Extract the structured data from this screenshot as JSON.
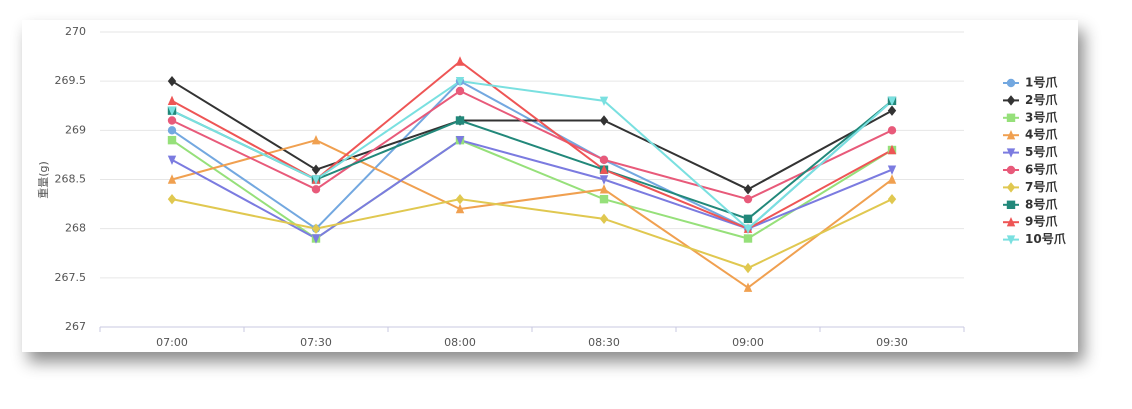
{
  "chart_data": {
    "type": "line",
    "y_label": "重量(g)",
    "categories": [
      "07:00",
      "07:30",
      "08:00",
      "08:30",
      "09:00",
      "09:30"
    ],
    "ylim": [
      267,
      270
    ],
    "yticks": [
      267,
      267.5,
      268,
      268.5,
      269,
      269.5,
      270
    ],
    "grid": true,
    "legend": "right",
    "series": [
      {
        "name": "1号爪",
        "color": "#73a8e0",
        "marker": "circle",
        "values": [
          269.0,
          268.0,
          269.5,
          268.7,
          268.0,
          269.3
        ]
      },
      {
        "name": "2号爪",
        "color": "#333333",
        "marker": "diamond",
        "values": [
          269.5,
          268.6,
          269.1,
          269.1,
          268.4,
          269.2
        ]
      },
      {
        "name": "3号爪",
        "color": "#96e07a",
        "marker": "square",
        "values": [
          268.9,
          267.9,
          268.9,
          268.3,
          267.9,
          268.8
        ]
      },
      {
        "name": "4号爪",
        "color": "#f0a050",
        "marker": "triangle",
        "values": [
          268.5,
          268.9,
          268.2,
          268.4,
          267.4,
          268.5
        ]
      },
      {
        "name": "5号爪",
        "color": "#7b7be0",
        "marker": "down-triangle",
        "values": [
          268.7,
          267.9,
          268.9,
          268.5,
          268.0,
          268.6
        ]
      },
      {
        "name": "6号爪",
        "color": "#e85a7a",
        "marker": "circle",
        "values": [
          269.1,
          268.4,
          269.4,
          268.7,
          268.3,
          269.0
        ]
      },
      {
        "name": "7号爪",
        "color": "#e0c850",
        "marker": "diamond",
        "values": [
          268.3,
          268.0,
          268.3,
          268.1,
          267.6,
          268.3
        ]
      },
      {
        "name": "8号爪",
        "color": "#22887a",
        "marker": "square",
        "values": [
          269.2,
          268.5,
          269.1,
          268.6,
          268.1,
          269.3
        ]
      },
      {
        "name": "9号爪",
        "color": "#ee5555",
        "marker": "triangle",
        "values": [
          269.3,
          268.5,
          269.7,
          268.6,
          268.0,
          268.8
        ]
      },
      {
        "name": "10号爪",
        "color": "#7ae0e0",
        "marker": "down-triangle",
        "values": [
          269.2,
          268.5,
          269.5,
          269.3,
          268.0,
          269.3
        ]
      }
    ]
  }
}
